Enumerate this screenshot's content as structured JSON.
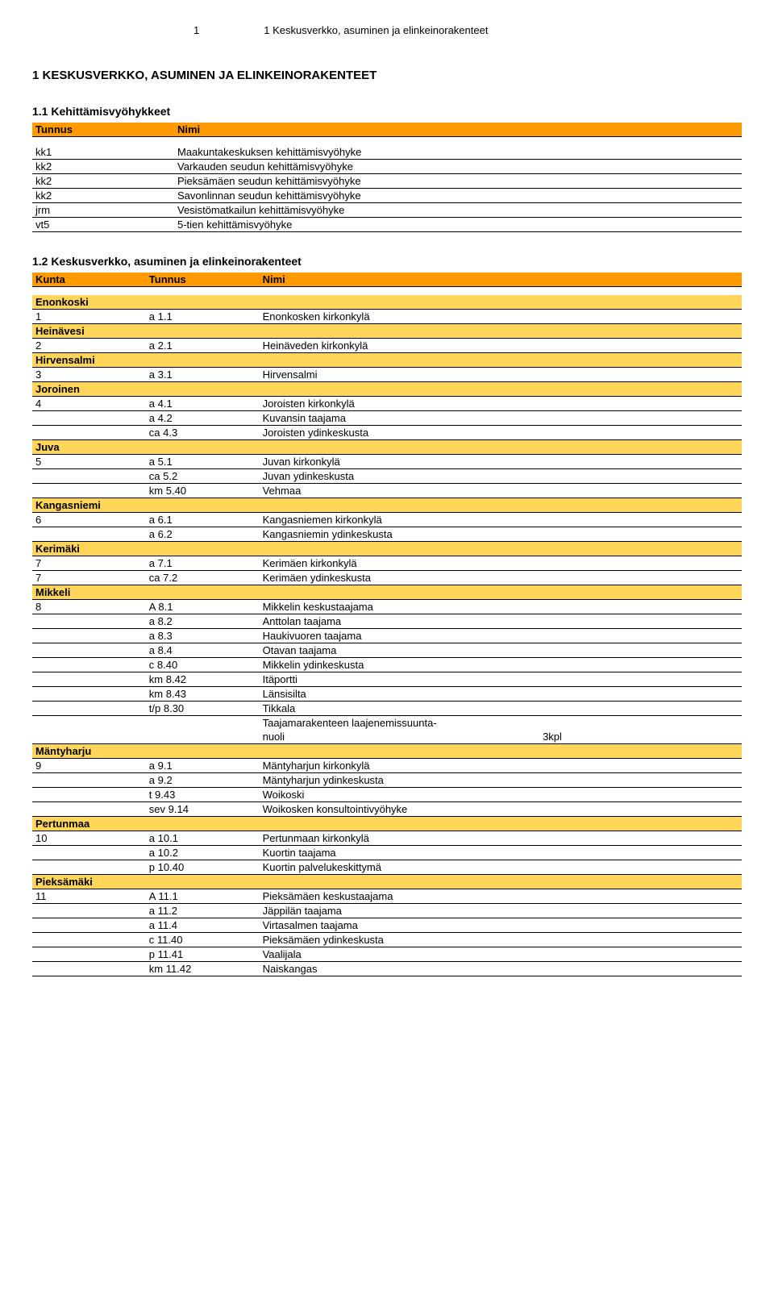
{
  "header": {
    "page_num": "1",
    "section_title": "1 Keskusverkko, asuminen ja elinkeinorakenteet"
  },
  "h1": "1 KESKUSVERKKO, ASUMINEN JA ELINKEINORAKENTEET",
  "s11": {
    "title": "1.1 Kehittämisvyöhykkeet",
    "cols": [
      "Tunnus",
      "Nimi"
    ],
    "rows": [
      {
        "tunnus": "kk1",
        "nimi": "Maakuntakeskuksen kehittämisvyöhyke"
      },
      {
        "tunnus": "kk2",
        "nimi": "Varkauden seudun kehittämisvyöhyke"
      },
      {
        "tunnus": "kk2",
        "nimi": "Pieksämäen seudun kehittämisvyöhyke"
      },
      {
        "tunnus": "kk2",
        "nimi": "Savonlinnan seudun kehittämisvyöhyke"
      },
      {
        "tunnus": "jrm",
        "nimi": "Vesistömatkailun kehittämisvyöhyke"
      },
      {
        "tunnus": "vt5",
        "nimi": "5-tien kehittämisvyöhyke"
      }
    ]
  },
  "s12": {
    "title": "1.2 Keskusverkko, asuminen ja elinkeinorakenteet",
    "cols": [
      "Kunta",
      "Tunnus",
      "Nimi"
    ],
    "groups": [
      {
        "name": "Enonkoski",
        "rows": [
          {
            "k": "1",
            "t": "a 1.1",
            "n": "Enonkosken kirkonkylä"
          }
        ]
      },
      {
        "name": "Heinävesi",
        "rows": [
          {
            "k": "2",
            "t": "a 2.1",
            "n": "Heinäveden kirkonkylä"
          }
        ]
      },
      {
        "name": "Hirvensalmi",
        "rows": [
          {
            "k": "3",
            "t": "a 3.1",
            "n": "Hirvensalmi"
          }
        ]
      },
      {
        "name": "Joroinen",
        "rows": [
          {
            "k": "4",
            "t": "a 4.1",
            "n": "Joroisten kirkonkylä"
          },
          {
            "k": "",
            "t": "a 4.2",
            "n": "Kuvansin taajama"
          },
          {
            "k": "",
            "t": "ca 4.3",
            "n": "Joroisten ydinkeskusta"
          }
        ]
      },
      {
        "name": "Juva",
        "rows": [
          {
            "k": "5",
            "t": "a 5.1",
            "n": "Juvan kirkonkylä"
          },
          {
            "k": "",
            "t": "ca 5.2",
            "n": "Juvan ydinkeskusta"
          },
          {
            "k": "",
            "t": "km 5.40",
            "n": "Vehmaa"
          }
        ]
      },
      {
        "name": "Kangasniemi",
        "rows": [
          {
            "k": "6",
            "t": "a 6.1",
            "n": "Kangasniemen kirkonkylä"
          },
          {
            "k": "",
            "t": "a 6.2",
            "n": "Kangasniemin ydinkeskusta"
          }
        ]
      },
      {
        "name": "Kerimäki",
        "rows": [
          {
            "k": "7",
            "t": "a 7.1",
            "n": "Kerimäen kirkonkylä"
          },
          {
            "k": "7",
            "t": "ca 7.2",
            "n": "Kerimäen ydinkeskusta"
          }
        ]
      },
      {
        "name": "Mikkeli",
        "rows": [
          {
            "k": "8",
            "t": "A 8.1",
            "n": "Mikkelin keskustaajama"
          },
          {
            "k": "",
            "t": "a 8.2",
            "n": "Anttolan taajama"
          },
          {
            "k": "",
            "t": "a 8.3",
            "n": "Haukivuoren taajama"
          },
          {
            "k": "",
            "t": "a 8.4",
            "n": "Otavan taajama"
          },
          {
            "k": "",
            "t": "c 8.40",
            "n": "Mikkelin ydinkeskusta"
          },
          {
            "k": "",
            "t": "km 8.42",
            "n": "Itäportti"
          },
          {
            "k": "",
            "t": "km 8.43",
            "n": "Länsisilta"
          },
          {
            "k": "",
            "t": "t/p 8.30",
            "n": "Tikkala"
          },
          {
            "k": "",
            "t": "",
            "n": "Taajamarakenteen laajenemissuunta-",
            "noborder": true
          },
          {
            "k": "",
            "t": "",
            "n": "",
            "extra": "nuoli",
            "extra2": "3kpl"
          }
        ]
      },
      {
        "name": "Mäntyharju",
        "rows": [
          {
            "k": "9",
            "t": "a 9.1",
            "n": "Mäntyharjun kirkonkylä"
          },
          {
            "k": "",
            "t": "a 9.2",
            "n": "Mäntyharjun ydinkeskusta"
          },
          {
            "k": "",
            "t": "t 9.43",
            "n": "Woikoski"
          },
          {
            "k": "",
            "t": "sev 9.14",
            "n": "Woikosken konsultointivyöhyke"
          }
        ]
      },
      {
        "name": "Pertunmaa",
        "rows": [
          {
            "k": "10",
            "t": "a 10.1",
            "n": "Pertunmaan kirkonkylä"
          },
          {
            "k": "",
            "t": "a 10.2",
            "n": "Kuortin taajama"
          },
          {
            "k": "",
            "t": "p 10.40",
            "n": "Kuortin palvelukeskittymä"
          }
        ]
      },
      {
        "name": "Pieksämäki",
        "rows": [
          {
            "k": "11",
            "t": "A 11.1",
            "n": "Pieksämäen keskustaajama"
          },
          {
            "k": "",
            "t": "a 11.2",
            "n": "Jäppilän taajama"
          },
          {
            "k": "",
            "t": "a 11.4",
            "n": "Virtasalmen taajama"
          },
          {
            "k": "",
            "t": "c 11.40",
            "n": "Pieksämäen ydinkeskusta"
          },
          {
            "k": "",
            "t": "p 11.41",
            "n": "Vaalijala"
          },
          {
            "k": "",
            "t": "km 11.42",
            "n": "Naiskangas"
          }
        ]
      }
    ]
  },
  "colors": {
    "header_bg": "#ff9a00",
    "section_bg": "#ffd65a",
    "border": "#000000",
    "text": "#000000",
    "background": "#ffffff"
  }
}
